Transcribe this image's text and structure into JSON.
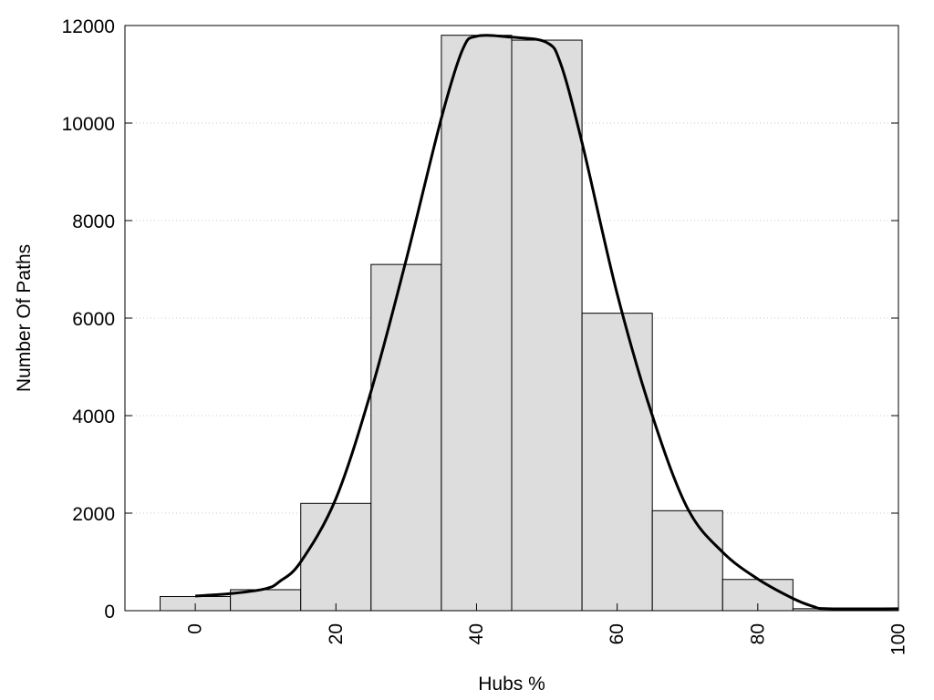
{
  "chart_data": {
    "type": "bar",
    "xlabel": "Hubs %",
    "ylabel": "Number Of Paths",
    "xlim": [
      -10,
      100
    ],
    "ylim": [
      0,
      12000
    ],
    "grid": true,
    "x_ticks": [
      "0",
      "20",
      "40",
      "60",
      "80",
      "100"
    ],
    "x_tick_values": [
      0,
      20,
      40,
      60,
      80,
      100
    ],
    "y_ticks": [
      "0",
      "2000",
      "4000",
      "6000",
      "8000",
      "10000",
      "12000"
    ],
    "y_tick_values": [
      0,
      2000,
      4000,
      6000,
      8000,
      10000,
      12000
    ],
    "bin_width": 10,
    "bars": [
      {
        "x": 0,
        "value": 290
      },
      {
        "x": 10,
        "value": 430
      },
      {
        "x": 20,
        "value": 2200
      },
      {
        "x": 30,
        "value": 7100
      },
      {
        "x": 40,
        "value": 11800
      },
      {
        "x": 50,
        "value": 11700
      },
      {
        "x": 60,
        "value": 6100
      },
      {
        "x": 70,
        "value": 2050
      },
      {
        "x": 80,
        "value": 640
      },
      {
        "x": 90,
        "value": 40
      },
      {
        "x": 100,
        "value": 40
      }
    ],
    "curve": [
      [
        0,
        300
      ],
      [
        5,
        350
      ],
      [
        10,
        450
      ],
      [
        12,
        600
      ],
      [
        15,
        1000
      ],
      [
        20,
        2300
      ],
      [
        25,
        4500
      ],
      [
        30,
        7200
      ],
      [
        35,
        10100
      ],
      [
        38,
        11500
      ],
      [
        40,
        11780
      ],
      [
        45,
        11760
      ],
      [
        50,
        11650
      ],
      [
        52,
        11200
      ],
      [
        55,
        9600
      ],
      [
        60,
        6500
      ],
      [
        65,
        4000
      ],
      [
        70,
        2100
      ],
      [
        75,
        1200
      ],
      [
        80,
        650
      ],
      [
        85,
        250
      ],
      [
        88,
        80
      ],
      [
        90,
        40
      ],
      [
        100,
        40
      ]
    ],
    "colors": {
      "bar_fill": "#dddddd",
      "bar_stroke": "#000000",
      "curve": "#000000",
      "grid": "#c8c8c8"
    }
  }
}
